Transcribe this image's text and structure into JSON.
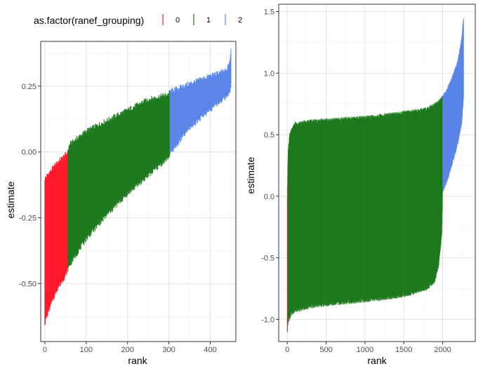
{
  "legend": {
    "title": "as.factor(ranef_grouping)",
    "position": "top-left",
    "entries": [
      {
        "label": "0",
        "color": "#ff1a2a"
      },
      {
        "label": "1",
        "color": "#1f7a1f"
      },
      {
        "label": "2",
        "color": "#5b86e8"
      }
    ]
  },
  "chart_data": [
    {
      "type": "linerange",
      "xlabel": "rank",
      "ylabel": "estimate",
      "xlim": [
        -10,
        462
      ],
      "ylim": [
        -0.72,
        0.42
      ],
      "grid": true,
      "xticks": [
        0,
        100,
        200,
        300,
        400
      ],
      "xtick_labels": [
        "0",
        "100",
        "200",
        "300",
        "400"
      ],
      "yticks": [
        0.25,
        0.0,
        -0.25,
        -0.5
      ],
      "ytick_labels": [
        "0.25",
        "0.00",
        "-0.25",
        "-0.50"
      ],
      "n": 450,
      "groups": [
        {
          "group": "0",
          "rank_range": [
            0,
            55
          ]
        },
        {
          "group": "1",
          "rank_range": [
            56,
            302
          ]
        },
        {
          "group": "2",
          "rank_range": [
            303,
            450
          ]
        }
      ],
      "upper_bound": {
        "rank": [
          0,
          10,
          30,
          50,
          55,
          60,
          100,
          150,
          200,
          250,
          300,
          302,
          350,
          400,
          440,
          448,
          450
        ],
        "estimate": [
          -0.1,
          -0.08,
          -0.04,
          -0.01,
          0.0,
          0.03,
          0.08,
          0.12,
          0.16,
          0.2,
          0.22,
          0.23,
          0.26,
          0.29,
          0.31,
          0.35,
          0.39
        ]
      },
      "lower_bound": {
        "rank": [
          0,
          10,
          30,
          50,
          55,
          60,
          100,
          150,
          200,
          250,
          300,
          302,
          350,
          400,
          440,
          450
        ],
        "estimate": [
          -0.65,
          -0.6,
          -0.52,
          -0.47,
          -0.45,
          -0.43,
          -0.33,
          -0.24,
          -0.16,
          -0.09,
          -0.02,
          -0.01,
          0.09,
          0.16,
          0.21,
          0.24
        ]
      }
    },
    {
      "type": "linerange",
      "xlabel": "rank",
      "ylabel": "estimate",
      "xlim": [
        -110,
        2420
      ],
      "ylim": [
        -1.18,
        1.56
      ],
      "grid": true,
      "xticks": [
        0,
        500,
        1000,
        1500,
        2000
      ],
      "xtick_labels": [
        "0",
        "500",
        "1000",
        "1500",
        "2000"
      ],
      "yticks": [
        1.5,
        1.0,
        0.5,
        0.0,
        -0.5,
        -1.0
      ],
      "ytick_labels": [
        "1.5",
        "1.0",
        "0.5",
        "0.0",
        "-0.5",
        "-1.0"
      ],
      "n": 2270,
      "groups": [
        {
          "group": "0",
          "rank_range": [
            0,
            8
          ]
        },
        {
          "group": "1",
          "rank_range": [
            9,
            2000
          ]
        },
        {
          "group": "2",
          "rank_range": [
            2001,
            2270
          ]
        }
      ],
      "upper_bound": {
        "rank": [
          0,
          10,
          30,
          100,
          300,
          500,
          1000,
          1500,
          1800,
          1950,
          2000,
          2050,
          2100,
          2150,
          2200,
          2250,
          2270
        ],
        "estimate": [
          0.0,
          0.35,
          0.5,
          0.58,
          0.6,
          0.61,
          0.63,
          0.67,
          0.7,
          0.76,
          0.8,
          0.85,
          0.92,
          1.0,
          1.1,
          1.3,
          1.46
        ]
      },
      "lower_bound": {
        "rank": [
          0,
          10,
          50,
          100,
          300,
          500,
          1000,
          1500,
          1800,
          1900,
          1950,
          1990,
          2000,
          2050,
          2100,
          2150,
          2200,
          2250,
          2270
        ],
        "estimate": [
          -1.1,
          -1.02,
          -0.95,
          -0.92,
          -0.89,
          -0.87,
          -0.84,
          -0.8,
          -0.74,
          -0.68,
          -0.55,
          -0.3,
          0.05,
          0.12,
          0.22,
          0.33,
          0.45,
          0.62,
          0.8
        ]
      }
    }
  ]
}
